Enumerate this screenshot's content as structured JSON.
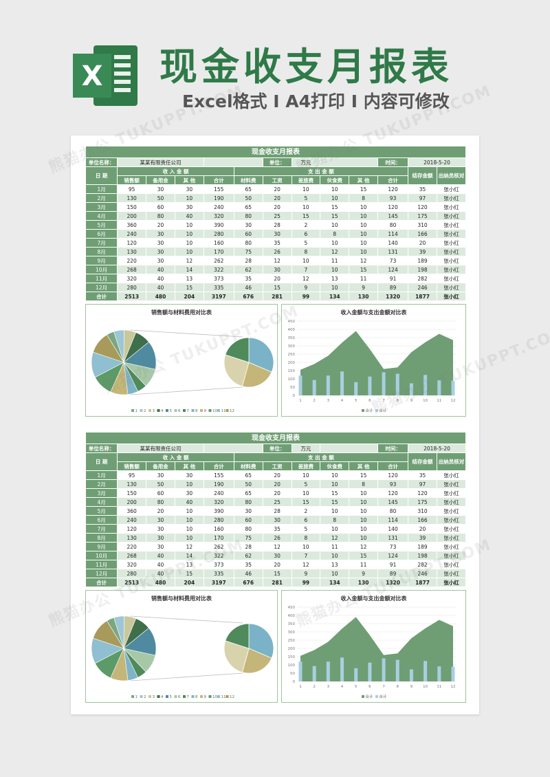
{
  "header": {
    "logo_letter": "X",
    "title": "现金收支月报表",
    "subtitle": "Excel格式 I A4打印 I 内容可修改"
  },
  "watermark": "熊猫办公 TUKUPPT.COM",
  "colors": {
    "primary": "#6f9e74",
    "light": "#dceadd",
    "title": "#2f7a48"
  },
  "report": {
    "title": "现金收支月报表",
    "unit_label": "单位名称：",
    "unit_name": "某某有限责任公司",
    "unit2_label": "单位：",
    "currency": "万元",
    "time_label": "时间：",
    "date": "2018-5-20",
    "date_header": "日 期",
    "income_header": "收 入 金 额",
    "expense_header": "支 出 金 额",
    "balance_header": "结存金额",
    "cashier_header": "出纳员核对",
    "columns": [
      "销售额",
      "备用金",
      "其 他",
      "合计",
      "材料费",
      "工资",
      "差旅费",
      "伙食费",
      "其 他",
      "合计"
    ],
    "rows": [
      [
        "1月",
        "95",
        "30",
        "30",
        "155",
        "65",
        "20",
        "10",
        "10",
        "15",
        "120",
        "35",
        "张小红"
      ],
      [
        "2月",
        "130",
        "50",
        "10",
        "190",
        "50",
        "20",
        "5",
        "10",
        "8",
        "93",
        "97",
        "张小红"
      ],
      [
        "3月",
        "150",
        "60",
        "30",
        "240",
        "65",
        "20",
        "10",
        "15",
        "10",
        "120",
        "120",
        "张小红"
      ],
      [
        "4月",
        "200",
        "80",
        "40",
        "320",
        "80",
        "25",
        "15",
        "15",
        "10",
        "145",
        "175",
        "张小红"
      ],
      [
        "5月",
        "360",
        "20",
        "10",
        "390",
        "30",
        "28",
        "2",
        "10",
        "10",
        "80",
        "310",
        "张小红"
      ],
      [
        "6月",
        "240",
        "30",
        "10",
        "280",
        "60",
        "30",
        "6",
        "8",
        "10",
        "114",
        "166",
        "张小红"
      ],
      [
        "7月",
        "120",
        "30",
        "10",
        "160",
        "80",
        "35",
        "5",
        "10",
        "10",
        "140",
        "20",
        "张小红"
      ],
      [
        "8月",
        "130",
        "30",
        "10",
        "170",
        "75",
        "26",
        "8",
        "12",
        "10",
        "131",
        "39",
        "张小红"
      ],
      [
        "9月",
        "220",
        "30",
        "12",
        "262",
        "28",
        "12",
        "10",
        "11",
        "12",
        "73",
        "189",
        "张小红"
      ],
      [
        "10月",
        "268",
        "40",
        "14",
        "322",
        "62",
        "30",
        "7",
        "10",
        "15",
        "124",
        "198",
        "张小红"
      ],
      [
        "11月",
        "320",
        "40",
        "13",
        "373",
        "35",
        "20",
        "12",
        "13",
        "11",
        "91",
        "282",
        "张小红"
      ],
      [
        "12月",
        "280",
        "40",
        "15",
        "335",
        "46",
        "15",
        "9",
        "10",
        "9",
        "89",
        "246",
        "张小红"
      ]
    ],
    "total": [
      "合计",
      "2513",
      "480",
      "204",
      "3197",
      "676",
      "281",
      "99",
      "134",
      "130",
      "1320",
      "1877",
      "张小红"
    ]
  },
  "pie_chart": {
    "title": "销售额与材料费用对比表",
    "legend": [
      "1",
      "2",
      "3",
      "4",
      "5",
      "6",
      "7",
      "8",
      "9",
      "10",
      "11",
      "12"
    ],
    "slice_colors": [
      "#7aa77f",
      "#9ec6d4",
      "#c9c79c",
      "#3f6f4a",
      "#4f8aa0",
      "#a7c8a7",
      "#4e8a5a",
      "#7eb4c8",
      "#c4b678",
      "#5c9a68",
      "#8fbfd0",
      "#a89a5a"
    ]
  },
  "chart_data": [
    {
      "type": "pie",
      "title": "销售额与材料费用对比表",
      "categories": [
        "1",
        "2",
        "3",
        "4",
        "5",
        "6",
        "7",
        "8",
        "9",
        "10",
        "11",
        "12"
      ],
      "values": [
        95,
        130,
        150,
        200,
        360,
        240,
        120,
        130,
        220,
        268,
        320,
        280
      ]
    },
    {
      "type": "area",
      "title": "收入金额与支出金额对比表",
      "categories": [
        "1",
        "2",
        "3",
        "4",
        "5",
        "6",
        "7",
        "8",
        "9",
        "10",
        "11",
        "12"
      ],
      "ylim": [
        0,
        450
      ],
      "yticks": [
        "0",
        "50",
        "100",
        "150",
        "200",
        "250",
        "300",
        "350",
        "400",
        "450"
      ],
      "series": [
        {
          "name": "合计",
          "kind": "area",
          "color": "#6f9e74",
          "values": [
            155,
            190,
            240,
            320,
            390,
            280,
            160,
            170,
            262,
            322,
            373,
            335
          ]
        },
        {
          "name": "合计",
          "kind": "bar",
          "color": "#a8cfe0",
          "values": [
            120,
            93,
            120,
            145,
            80,
            114,
            140,
            131,
            73,
            124,
            91,
            89
          ]
        }
      ],
      "legend": [
        "合计",
        "合计"
      ]
    }
  ]
}
